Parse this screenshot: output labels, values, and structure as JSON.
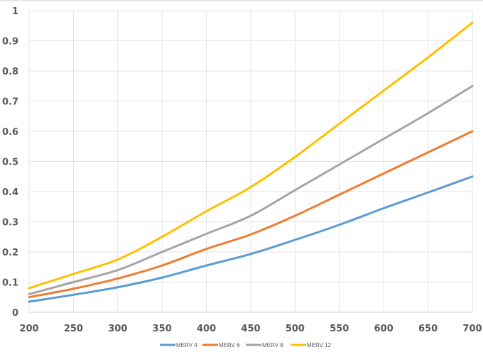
{
  "chart_data": {
    "type": "line",
    "title": "",
    "xlabel": "",
    "ylabel": "",
    "x": [
      200,
      250,
      300,
      350,
      400,
      450,
      500,
      550,
      600,
      650,
      700
    ],
    "xlim": [
      200,
      700
    ],
    "ylim": [
      0,
      1
    ],
    "x_ticks": [
      "200",
      "250",
      "300",
      "350",
      "400",
      "450",
      "500",
      "550",
      "600",
      "650",
      "700"
    ],
    "y_ticks": [
      "0",
      "0.1",
      "0.2",
      "0.3",
      "0.4",
      "0.5",
      "0.6",
      "0.7",
      "0.8",
      "0.9",
      "1"
    ],
    "grid": true,
    "legend_position": "bottom",
    "series": [
      {
        "name": "MERV 4",
        "color": "#5B9BD5",
        "values": [
          0.035,
          0.058,
          0.083,
          0.115,
          0.155,
          0.193,
          0.24,
          0.29,
          0.345,
          0.397,
          0.45
        ]
      },
      {
        "name": "MERV 6",
        "color": "#ED7D31",
        "values": [
          0.05,
          0.078,
          0.112,
          0.155,
          0.21,
          0.258,
          0.32,
          0.39,
          0.46,
          0.53,
          0.6
        ]
      },
      {
        "name": "MERV 8",
        "color": "#A5A5A5",
        "values": [
          0.06,
          0.1,
          0.14,
          0.2,
          0.26,
          0.32,
          0.405,
          0.49,
          0.575,
          0.66,
          0.75
        ]
      },
      {
        "name": "MERV 12",
        "color": "#FFC000",
        "values": [
          0.08,
          0.127,
          0.175,
          0.25,
          0.335,
          0.415,
          0.515,
          0.625,
          0.735,
          0.845,
          0.96
        ]
      }
    ]
  }
}
